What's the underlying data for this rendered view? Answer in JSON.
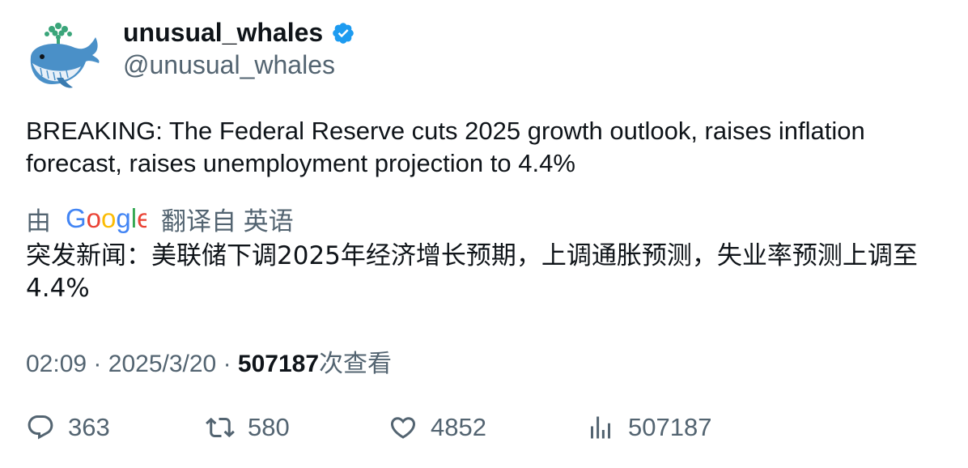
{
  "author": {
    "display_name": "unusual_whales",
    "handle": "@unusual_whales",
    "avatar_icon": "whale-icon",
    "verified_color": "#1d9bf0"
  },
  "tweet": {
    "text": "BREAKING: The Federal Reserve cuts 2025 growth outlook, raises inflation forecast, raises unemployment projection to 4.4%"
  },
  "translation": {
    "by_label": "由",
    "provider": "Google",
    "from_label": "翻译自 英语",
    "text": "突发新闻：美联储下调2025年经济增长预期，上调通胀预测，失业率预测上调至4.4%"
  },
  "meta": {
    "time": "02:09",
    "separator": "·",
    "date": "2025/3/20",
    "views_count": "507187",
    "views_label": "次查看"
  },
  "actions": {
    "replies": "363",
    "retweets": "580",
    "likes": "4852",
    "views": "507187"
  }
}
